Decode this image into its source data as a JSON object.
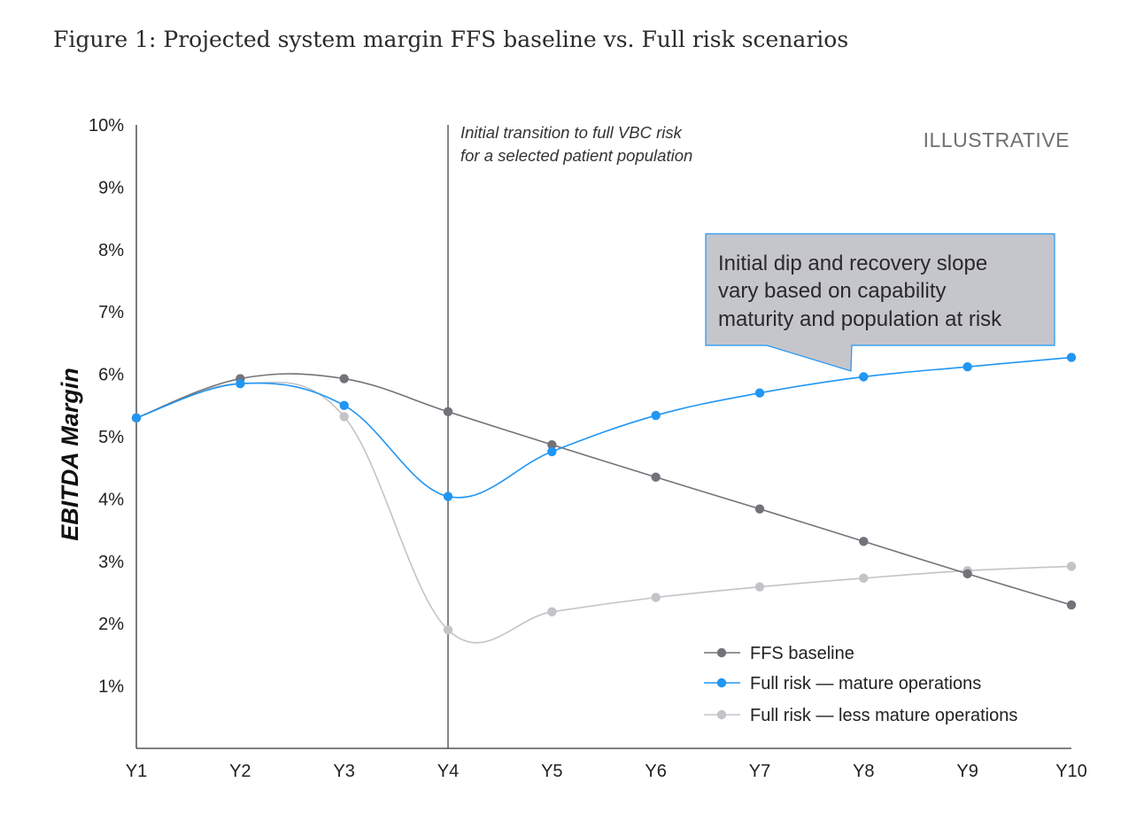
{
  "figure_title": "Figure 1: Projected system margin FFS baseline vs. Full risk scenarios",
  "colors": {
    "ffs": "#737278",
    "mature": "#2196f3",
    "less": "#c3c3c8",
    "callout_fill": "#c5c5cc",
    "callout_border": "#2196f3",
    "axis": "#333333"
  },
  "chart_data": {
    "type": "line",
    "title": "",
    "xlabel": "",
    "ylabel": "EBITDA Margin",
    "categories": [
      "Y1",
      "Y2",
      "Y3",
      "Y4",
      "Y5",
      "Y6",
      "Y7",
      "Y8",
      "Y9",
      "Y10"
    ],
    "ylim": [
      0,
      10
    ],
    "yticks": [
      "1%",
      "2%",
      "3%",
      "4%",
      "5%",
      "6%",
      "7%",
      "8%",
      "9%",
      "10%"
    ],
    "series": [
      {
        "name": "FFS baseline",
        "key": "ffs",
        "values": [
          5.3,
          5.93,
          5.93,
          5.4,
          4.87,
          4.35,
          3.84,
          3.32,
          2.8,
          2.3
        ]
      },
      {
        "name": "Full risk — mature operations",
        "key": "mature",
        "values": [
          5.3,
          5.85,
          5.5,
          4.04,
          4.76,
          5.34,
          5.7,
          5.96,
          6.12,
          6.27
        ]
      },
      {
        "name": "Full risk — less mature operations",
        "key": "less",
        "values": [
          5.3,
          5.85,
          5.32,
          1.9,
          2.19,
          2.42,
          2.59,
          2.73,
          2.85,
          2.92
        ]
      }
    ],
    "vline": {
      "at": "Y4",
      "label_line1": "Initial transition to full VBC risk",
      "label_line2": "for a selected patient population"
    },
    "watermark": "ILLUSTRATIVE",
    "callout": {
      "line1": "Initial dip and recovery slope",
      "line2": "vary based on capability",
      "line3": "maturity and population at risk"
    },
    "legend": [
      {
        "label": "FFS baseline",
        "key": "ffs"
      },
      {
        "label": "Full risk — mature operations",
        "key": "mature"
      },
      {
        "label": "Full risk — less mature operations",
        "key": "less"
      }
    ],
    "legend_position": "bottom-right",
    "grid": false
  }
}
